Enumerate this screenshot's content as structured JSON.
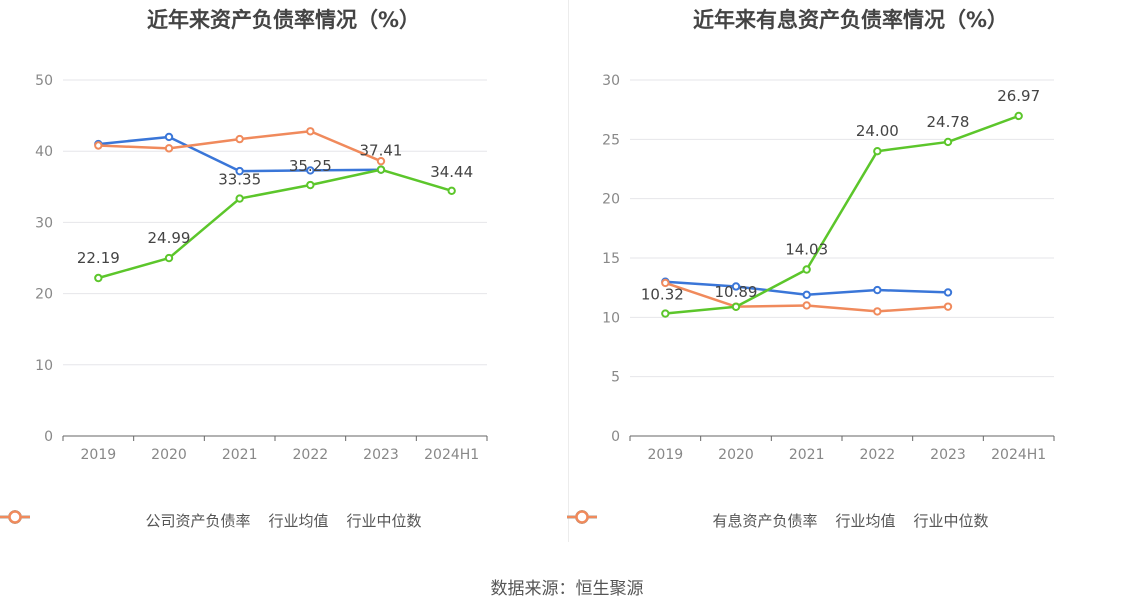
{
  "source_text": "数据来源：恒生聚源",
  "chart_data": [
    {
      "type": "line",
      "title": "近年来资产负债率情况（%）",
      "categories": [
        "2019",
        "2020",
        "2021",
        "2022",
        "2023",
        "2024H1"
      ],
      "ylim": [
        0,
        50
      ],
      "yticks": [
        0,
        10,
        20,
        30,
        40,
        50
      ],
      "grid": true,
      "legend_position": "bottom",
      "series": [
        {
          "name": "公司资产负债率",
          "color": "#5cc62b",
          "values": [
            22.19,
            24.99,
            33.35,
            35.25,
            37.41,
            34.44
          ],
          "labels": [
            "22.19",
            "24.99",
            "33.35",
            "35.25",
            "37.41",
            "34.44"
          ]
        },
        {
          "name": "行业均值",
          "color": "#3a76d8",
          "values": [
            41.0,
            42.0,
            37.2,
            37.3,
            37.4,
            null
          ]
        },
        {
          "name": "行业中位数",
          "color": "#f08a5c",
          "values": [
            40.8,
            40.4,
            41.7,
            42.8,
            38.6,
            null
          ]
        }
      ]
    },
    {
      "type": "line",
      "title": "近年来有息资产负债率情况（%）",
      "categories": [
        "2019",
        "2020",
        "2021",
        "2022",
        "2023",
        "2024H1"
      ],
      "ylim": [
        0,
        30
      ],
      "yticks": [
        0,
        5,
        10,
        15,
        20,
        25,
        30
      ],
      "grid": true,
      "legend_position": "bottom",
      "series": [
        {
          "name": "有息资产负债率",
          "color": "#5cc62b",
          "values": [
            10.32,
            10.89,
            14.03,
            24.0,
            24.78,
            26.97
          ],
          "labels": [
            "10.32",
            "10.89",
            "14.03",
            "24.00",
            "24.78",
            "26.97"
          ]
        },
        {
          "name": "行业均值",
          "color": "#3a76d8",
          "values": [
            13.0,
            12.6,
            11.9,
            12.3,
            12.1,
            null
          ]
        },
        {
          "name": "行业中位数",
          "color": "#f08a5c",
          "values": [
            12.9,
            10.9,
            11.0,
            10.5,
            10.9,
            null
          ]
        }
      ]
    }
  ]
}
